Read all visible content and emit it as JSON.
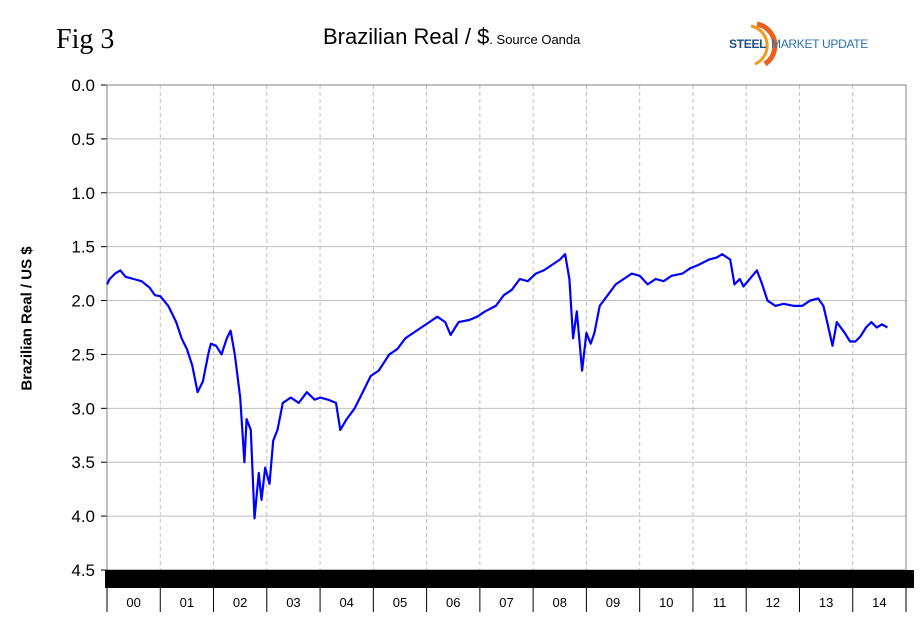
{
  "fig_label": "Fig 3",
  "logo_text": {
    "part1": "STEEL",
    "part2": "MARKET UPDATE"
  },
  "chart_data": {
    "type": "line",
    "title": "Brazilian Real / $",
    "subtitle": ". Source Oanda",
    "xlabel": "",
    "ylabel": "Brazilian Real / US $",
    "ylim": [
      0,
      4.5
    ],
    "y_inverted": true,
    "yticks": [
      "0.0",
      "0.5",
      "1.0",
      "1.5",
      "2.0",
      "2.5",
      "3.0",
      "3.5",
      "4.0",
      "4.5"
    ],
    "xlim": [
      2000,
      2015
    ],
    "xtick_labels": [
      "00",
      "01",
      "02",
      "03",
      "04",
      "05",
      "06",
      "07",
      "08",
      "09",
      "10",
      "11",
      "12",
      "13",
      "14"
    ],
    "grid": "vertical dashed, horizontal solid",
    "line_color": "#0000ff",
    "series": [
      {
        "points": [
          [
            2000.0,
            1.85
          ],
          [
            2000.05,
            1.8
          ],
          [
            2000.15,
            1.75
          ],
          [
            2000.25,
            1.72
          ],
          [
            2000.35,
            1.78
          ],
          [
            2000.5,
            1.8
          ],
          [
            2000.65,
            1.82
          ],
          [
            2000.8,
            1.88
          ],
          [
            2000.9,
            1.95
          ],
          [
            2001.0,
            1.96
          ],
          [
            2001.15,
            2.05
          ],
          [
            2001.3,
            2.2
          ],
          [
            2001.4,
            2.35
          ],
          [
            2001.5,
            2.45
          ],
          [
            2001.6,
            2.6
          ],
          [
            2001.7,
            2.85
          ],
          [
            2001.8,
            2.75
          ],
          [
            2001.9,
            2.5
          ],
          [
            2001.95,
            2.4
          ],
          [
            2002.05,
            2.42
          ],
          [
            2002.15,
            2.5
          ],
          [
            2002.25,
            2.35
          ],
          [
            2002.32,
            2.28
          ],
          [
            2002.4,
            2.5
          ],
          [
            2002.5,
            2.9
          ],
          [
            2002.58,
            3.5
          ],
          [
            2002.62,
            3.1
          ],
          [
            2002.7,
            3.2
          ],
          [
            2002.77,
            4.02
          ],
          [
            2002.85,
            3.6
          ],
          [
            2002.9,
            3.85
          ],
          [
            2002.97,
            3.55
          ],
          [
            2003.05,
            3.7
          ],
          [
            2003.12,
            3.3
          ],
          [
            2003.2,
            3.2
          ],
          [
            2003.3,
            2.95
          ],
          [
            2003.45,
            2.9
          ],
          [
            2003.6,
            2.95
          ],
          [
            2003.75,
            2.85
          ],
          [
            2003.9,
            2.92
          ],
          [
            2004.0,
            2.9
          ],
          [
            2004.15,
            2.92
          ],
          [
            2004.3,
            2.95
          ],
          [
            2004.38,
            3.2
          ],
          [
            2004.5,
            3.1
          ],
          [
            2004.65,
            3.0
          ],
          [
            2004.8,
            2.85
          ],
          [
            2004.95,
            2.7
          ],
          [
            2005.1,
            2.65
          ],
          [
            2005.3,
            2.5
          ],
          [
            2005.45,
            2.45
          ],
          [
            2005.6,
            2.35
          ],
          [
            2005.75,
            2.3
          ],
          [
            2005.9,
            2.25
          ],
          [
            2006.05,
            2.2
          ],
          [
            2006.2,
            2.15
          ],
          [
            2006.35,
            2.2
          ],
          [
            2006.45,
            2.32
          ],
          [
            2006.6,
            2.2
          ],
          [
            2006.8,
            2.18
          ],
          [
            2006.95,
            2.15
          ],
          [
            2007.1,
            2.1
          ],
          [
            2007.3,
            2.05
          ],
          [
            2007.45,
            1.95
          ],
          [
            2007.6,
            1.9
          ],
          [
            2007.75,
            1.8
          ],
          [
            2007.9,
            1.82
          ],
          [
            2008.05,
            1.75
          ],
          [
            2008.2,
            1.72
          ],
          [
            2008.35,
            1.67
          ],
          [
            2008.5,
            1.62
          ],
          [
            2008.6,
            1.57
          ],
          [
            2008.68,
            1.8
          ],
          [
            2008.75,
            2.35
          ],
          [
            2008.82,
            2.1
          ],
          [
            2008.92,
            2.65
          ],
          [
            2009.0,
            2.3
          ],
          [
            2009.08,
            2.4
          ],
          [
            2009.15,
            2.3
          ],
          [
            2009.25,
            2.05
          ],
          [
            2009.4,
            1.95
          ],
          [
            2009.55,
            1.85
          ],
          [
            2009.7,
            1.8
          ],
          [
            2009.85,
            1.75
          ],
          [
            2010.0,
            1.77
          ],
          [
            2010.15,
            1.85
          ],
          [
            2010.3,
            1.8
          ],
          [
            2010.45,
            1.82
          ],
          [
            2010.6,
            1.77
          ],
          [
            2010.8,
            1.75
          ],
          [
            2010.95,
            1.7
          ],
          [
            2011.1,
            1.67
          ],
          [
            2011.3,
            1.62
          ],
          [
            2011.45,
            1.6
          ],
          [
            2011.55,
            1.57
          ],
          [
            2011.7,
            1.62
          ],
          [
            2011.78,
            1.85
          ],
          [
            2011.88,
            1.8
          ],
          [
            2011.95,
            1.87
          ],
          [
            2012.1,
            1.78
          ],
          [
            2012.2,
            1.72
          ],
          [
            2012.3,
            1.85
          ],
          [
            2012.4,
            2.0
          ],
          [
            2012.55,
            2.05
          ],
          [
            2012.7,
            2.03
          ],
          [
            2012.9,
            2.05
          ],
          [
            2013.05,
            2.05
          ],
          [
            2013.2,
            2.0
          ],
          [
            2013.35,
            1.98
          ],
          [
            2013.45,
            2.05
          ],
          [
            2013.52,
            2.2
          ],
          [
            2013.62,
            2.42
          ],
          [
            2013.7,
            2.2
          ],
          [
            2013.85,
            2.3
          ],
          [
            2013.95,
            2.38
          ],
          [
            2014.05,
            2.38
          ],
          [
            2014.15,
            2.33
          ],
          [
            2014.25,
            2.25
          ],
          [
            2014.35,
            2.2
          ],
          [
            2014.45,
            2.25
          ],
          [
            2014.55,
            2.22
          ],
          [
            2014.65,
            2.25
          ]
        ]
      }
    ]
  }
}
